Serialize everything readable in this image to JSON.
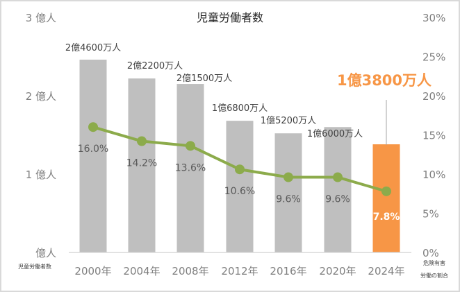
{
  "chart_data": {
    "type": "bar+line",
    "title": "児童労働者数",
    "categories": [
      "2000年",
      "2004年",
      "2008年",
      "2012年",
      "2016年",
      "2020年",
      "2024年"
    ],
    "series": [
      {
        "name": "児童労働者数",
        "type": "bar",
        "axis": "left",
        "unit": "億人",
        "values": [
          2.46,
          2.22,
          2.15,
          1.68,
          1.52,
          1.6,
          1.38
        ],
        "labels": [
          "2億4600万人",
          "2億2200万人",
          "2億1500万人",
          "1億6800万人",
          "1億5200万人",
          "1億6000万人",
          "1億3800万人"
        ],
        "colors": [
          "#bfbfbf",
          "#bfbfbf",
          "#bfbfbf",
          "#bfbfbf",
          "#bfbfbf",
          "#bfbfbf",
          "#f79646"
        ]
      },
      {
        "name": "危険有害労働の割合",
        "type": "line",
        "axis": "right",
        "unit": "%",
        "values": [
          16.0,
          14.2,
          13.6,
          10.6,
          9.6,
          9.6,
          7.8
        ],
        "labels": [
          "16.0%",
          "14.2%",
          "13.6%",
          "10.6%",
          "9.6%",
          "9.6%",
          "7.8%"
        ],
        "color": "#8cab4b"
      }
    ],
    "left_axis": {
      "label": "児童労働者数",
      "ylim": [
        0,
        3
      ],
      "ticks": [
        "億人",
        "1 億人",
        "2 億人",
        "3 億人"
      ]
    },
    "right_axis": {
      "label_lines": [
        "危険有害",
        "労働の割合"
      ],
      "ylim": [
        0,
        30
      ],
      "ticks": [
        "0%",
        "5%",
        "10%",
        "15%",
        "20%",
        "25%",
        "30%"
      ]
    },
    "highlight_annotation": "1億3800万人",
    "grid": false,
    "legend": "none"
  },
  "colors": {
    "bar_default": "#bfbfbf",
    "bar_highlight": "#f79646",
    "line": "#8cab4b",
    "axis_text": "#7f7f7f",
    "label_text": "#404040",
    "highlight_text": "#f79646",
    "axis_line": "#d9d9d9"
  }
}
